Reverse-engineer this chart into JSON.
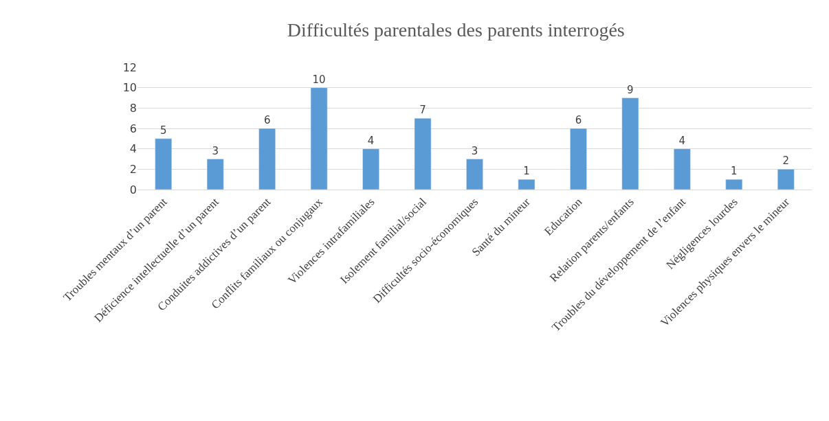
{
  "chart_data": {
    "type": "bar",
    "title": "Difficultés parentales des parents interrogés",
    "categories": [
      "Troubles mentaux d’un parent",
      "Déficience intellectuelle d’un parent",
      "Conduites addictives d’un parent",
      "Conflits familiaux ou conjugaux",
      "Violences intrafamiliales",
      "Isolement familial/social",
      "Difficultés socio-économiques",
      "Santé du mineur",
      "Education",
      "Relation parents/enfants",
      "Troubles du développement de l’enfant",
      "Négligences lourdes",
      "Violences physiques envers le mineur"
    ],
    "values": [
      5,
      3,
      6,
      10,
      4,
      7,
      3,
      1,
      6,
      9,
      4,
      1,
      2
    ],
    "color": "#5b9bd5",
    "ylim": [
      0,
      12
    ],
    "yticks": [
      0,
      2,
      4,
      6,
      8,
      10,
      12
    ],
    "grid": "y",
    "data_labels": true
  }
}
